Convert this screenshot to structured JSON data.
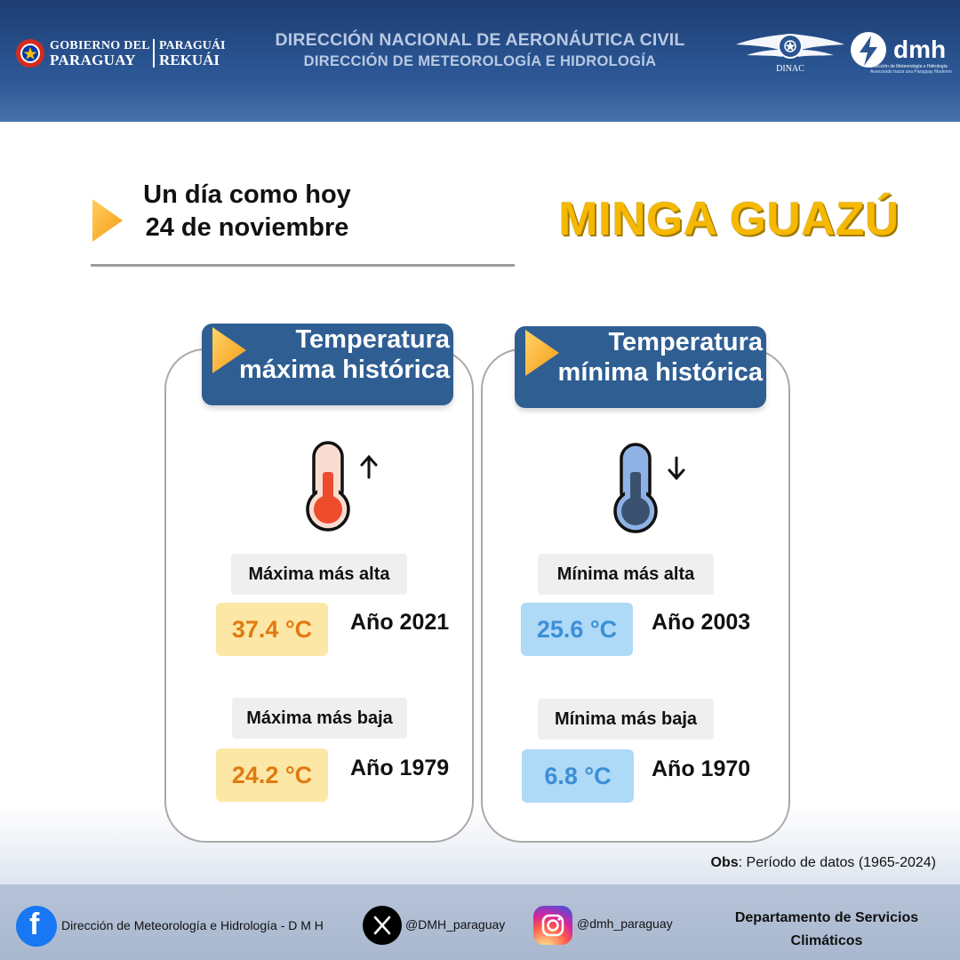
{
  "header": {
    "gov_line1": "GOBIERNO DEL",
    "gov_line2": "PARAGUAY",
    "gov_right1": "PARAGUÁI",
    "gov_right2": "REKUÁI",
    "title_line1": "DIRECCIÓN NACIONAL DE AERONÁUTICA CIVIL",
    "title_line2": "DIRECCIÓN DE METEOROLOGÍA  E HIDROLOGÍA",
    "dinac_label": "DINAC",
    "dmh_word": "dmh",
    "dmh_sub1": "Dirección de Meteorología e Hidrología",
    "dmh_sub2": "Avanzando hacia una Paraguay Moderno"
  },
  "intro": {
    "line1": "Un día como hoy",
    "line2": "24 de noviembre",
    "place": "MINGA GUAZÚ"
  },
  "cards": {
    "max": {
      "title_line1": "Temperatura",
      "title_line2": "máxima histórica",
      "trend_icon": "arrow-up",
      "high_label": "Máxima más alta",
      "high_value": "37.4 °C",
      "high_year": "Año 2021",
      "low_label": "Máxima más baja",
      "low_value": "24.2 °C",
      "low_year": "Año 1979",
      "accent": "#e07a10"
    },
    "min": {
      "title_line1": "Temperatura",
      "title_line2": "mínima histórica",
      "trend_icon": "arrow-down",
      "high_label": "Mínima más alta",
      "high_value": "25.6 °C",
      "high_year": "Año 2003",
      "low_label": "Mínima más baja",
      "low_value": "6.8 °C",
      "low_year": "Año 1970",
      "accent": "#3b8fd8"
    }
  },
  "obs": {
    "label": "Obs",
    "text": ": Período de datos (1965-2024)"
  },
  "footer": {
    "facebook": "Dirección de Meteorología e Hidrología - D M H",
    "x_handle": "@DMH_paraguay",
    "instagram": "@dmh_paraguay",
    "dept_line1": "Departamento de Servicios",
    "dept_line2": "Climáticos"
  },
  "colors": {
    "header_blue": "#2a5592",
    "card_head_blue": "#2f5e93",
    "place_yellow": "#f6b800",
    "arrow_orange": "#f7a21b"
  }
}
